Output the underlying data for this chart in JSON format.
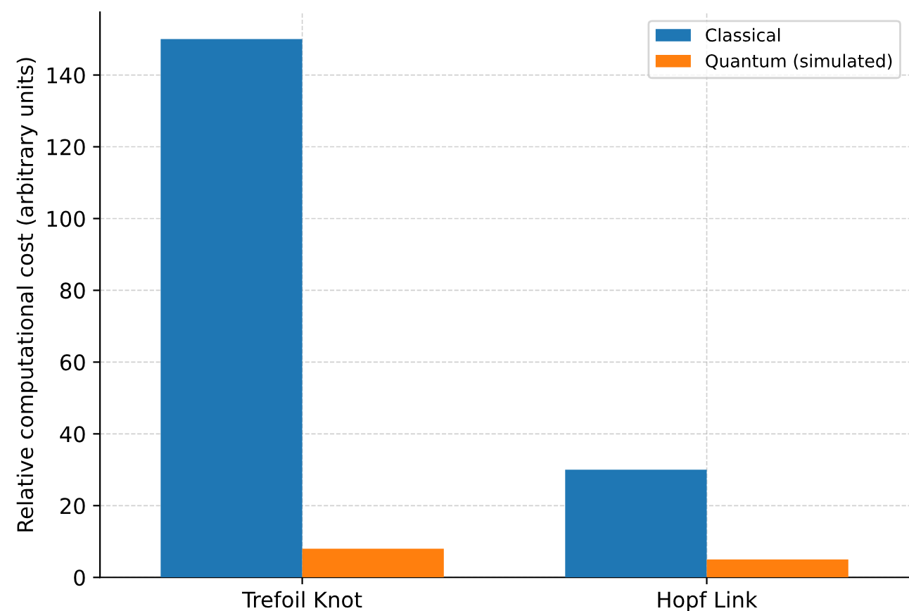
{
  "chart_data": {
    "type": "bar",
    "ylabel": "Relative computational cost (arbitrary units)",
    "categories": [
      "Trefoil Knot",
      "Hopf Link"
    ],
    "series": [
      {
        "name": "Classical",
        "color": "#1f77b4",
        "values": [
          150,
          30
        ]
      },
      {
        "name": "Quantum (simulated)",
        "color": "#ff7f0e",
        "values": [
          8,
          5
        ]
      }
    ],
    "ylim": [
      0,
      157.5
    ],
    "yticks": [
      0,
      20,
      40,
      60,
      80,
      100,
      120,
      140
    ],
    "grid": true,
    "legend": "top right"
  }
}
